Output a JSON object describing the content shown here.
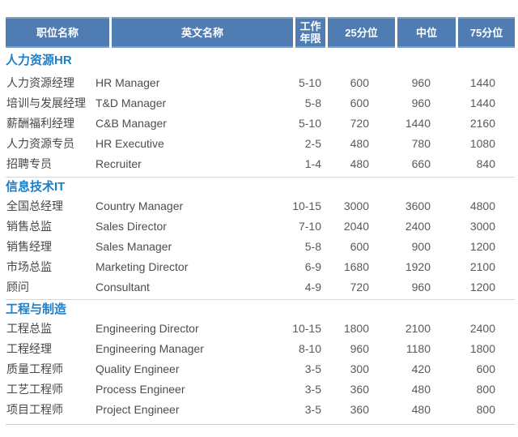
{
  "colors": {
    "header_bg": "#4f7db3",
    "header_text": "#ffffff",
    "section_title_text": "#1e7ec6",
    "body_text": "#4d4d4d",
    "divider": "#d6d6d6"
  },
  "table": {
    "columns": [
      "职位名称",
      "英文名称",
      "工作年限",
      "25分位",
      "中位",
      "75分位"
    ],
    "sections": [
      {
        "title": "人力资源HR",
        "rows": [
          {
            "position_cn": "人力资源经理",
            "position_en": "HR Manager",
            "years": "5-10",
            "p25": "600",
            "p50": "960",
            "p75": "1440"
          },
          {
            "position_cn": "培训与发展经理",
            "position_en": "T&D Manager",
            "years": "5-8",
            "p25": "600",
            "p50": "960",
            "p75": "1440"
          },
          {
            "position_cn": "薪酬福利经理",
            "position_en": "C&B Manager",
            "years": "5-10",
            "p25": "720",
            "p50": "1440",
            "p75": "2160"
          },
          {
            "position_cn": "人力资源专员",
            "position_en": "HR Executive",
            "years": "2-5",
            "p25": "480",
            "p50": "780",
            "p75": "1080"
          },
          {
            "position_cn": "招聘专员",
            "position_en": "Recruiter",
            "years": "1-4",
            "p25": "480",
            "p50": "660",
            "p75": "840"
          }
        ]
      },
      {
        "title": "信息技术IT",
        "rows": [
          {
            "position_cn": "全国总经理",
            "position_en": "Country Manager",
            "years": "10-15",
            "p25": "3000",
            "p50": "3600",
            "p75": "4800"
          },
          {
            "position_cn": "销售总监",
            "position_en": "Sales Director",
            "years": "7-10",
            "p25": "2040",
            "p50": "2400",
            "p75": "3000"
          },
          {
            "position_cn": "销售经理",
            "position_en": "Sales Manager",
            "years": "5-8",
            "p25": "600",
            "p50": "900",
            "p75": "1200"
          },
          {
            "position_cn": "市场总监",
            "position_en": "Marketing Director",
            "years": "6-9",
            "p25": "1680",
            "p50": "1920",
            "p75": "2100"
          },
          {
            "position_cn": "顾问",
            "position_en": "Consultant",
            "years": "4-9",
            "p25": "720",
            "p50": "960",
            "p75": "1200"
          }
        ]
      },
      {
        "title": "工程与制造",
        "rows": [
          {
            "position_cn": "工程总监",
            "position_en": "Engineering Director",
            "years": "10-15",
            "p25": "1800",
            "p50": "2100",
            "p75": "2400"
          },
          {
            "position_cn": "工程经理",
            "position_en": "Engineering Manager",
            "years": "8-10",
            "p25": "960",
            "p50": "1180",
            "p75": "1800"
          },
          {
            "position_cn": "质量工程师",
            "position_en": "Quality Engineer",
            "years": "3-5",
            "p25": "300",
            "p50": "420",
            "p75": "600"
          },
          {
            "position_cn": "工艺工程师",
            "position_en": "Process Engineer",
            "years": "3-5",
            "p25": "360",
            "p50": "480",
            "p75": "800"
          },
          {
            "position_cn": "项目工程师",
            "position_en": "Project Engineer",
            "years": "3-5",
            "p25": "360",
            "p50": "480",
            "p75": "800"
          }
        ]
      }
    ]
  }
}
